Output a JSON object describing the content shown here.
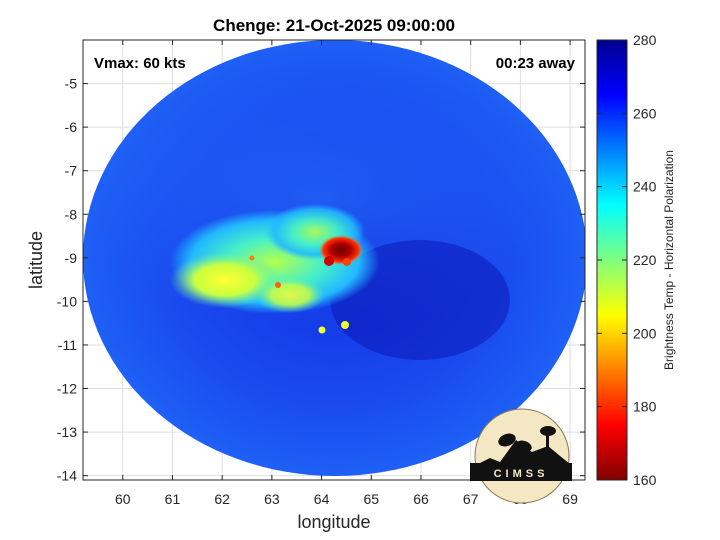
{
  "chart_data": {
    "type": "heatmap",
    "title": "Chenge: 21-Oct-2025 09:00:00",
    "xlabel": "longitude",
    "ylabel": "latitude",
    "xlim": [
      59.2,
      69.3
    ],
    "ylim": [
      -14.1,
      -4.0
    ],
    "x_ticks": [
      60,
      61,
      62,
      63,
      64,
      65,
      66,
      67,
      68,
      69
    ],
    "y_ticks": [
      -5,
      -6,
      -7,
      -8,
      -9,
      -10,
      -11,
      -12,
      -13,
      -14
    ],
    "grid": true,
    "annotations": {
      "vmax": "Vmax: 60 kts",
      "time_offset": "00:23 away"
    },
    "colorbar": {
      "label": "Brightness Temp - Horizontal Polarization",
      "range": [
        160,
        280
      ],
      "ticks": [
        280,
        260,
        240,
        220,
        200,
        180,
        160
      ],
      "colormap": "jet"
    },
    "swath_center": [
      64.3,
      -9.0
    ],
    "cold_core_center": [
      64.4,
      -8.95
    ],
    "cold_core_min": 165,
    "background_temp": 262,
    "logo_text": "CIMSS"
  },
  "colors": {
    "axis": "#262626",
    "grid": "#dfdfdf",
    "text": "#000000"
  }
}
